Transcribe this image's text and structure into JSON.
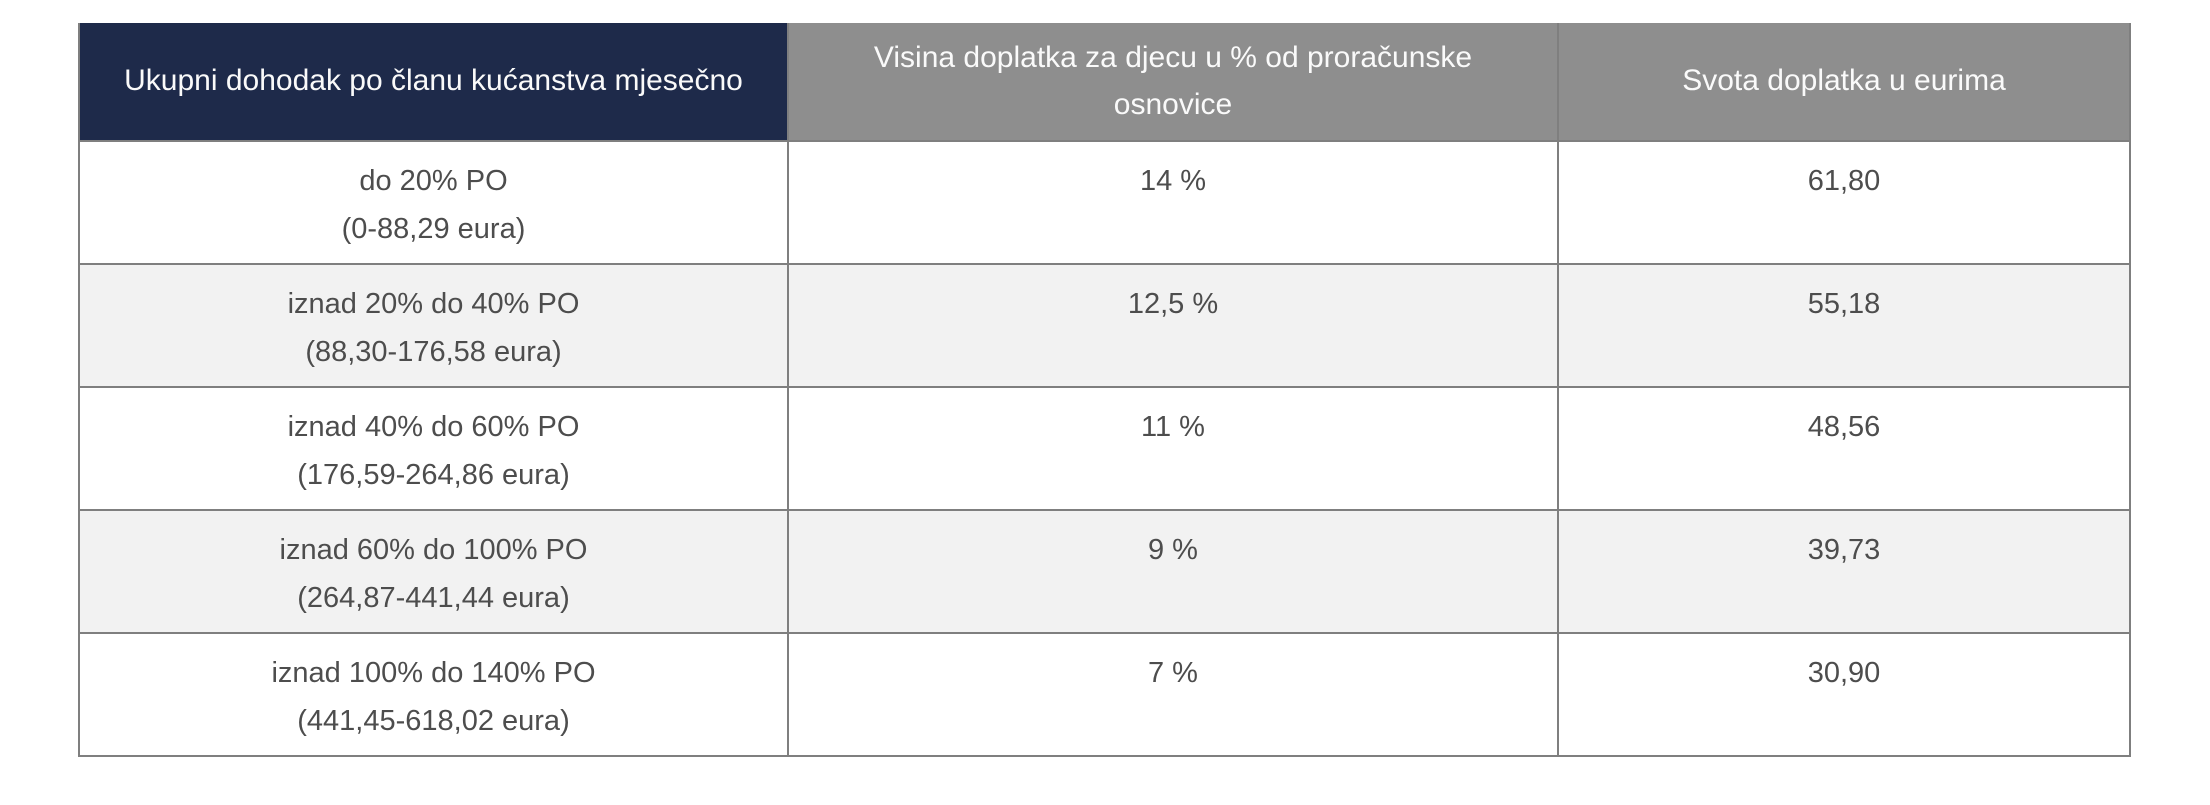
{
  "colors": {
    "header_income_bg": "#1e2a4a",
    "header_other_bg": "#8e8e8e",
    "header_text": "#fafafa",
    "body_text": "#4d4d4d",
    "row_bg": "#ffffff",
    "row_alt_bg": "#f2f2f2",
    "border": "#7f7f7f"
  },
  "table": {
    "columns": [
      "Ukupni dohodak po članu kućanstva mjesečno",
      "Visina doplatka za djecu u % od proračunske osnovice",
      "Svota doplatka u eurima"
    ],
    "rows": [
      {
        "range": "do 20% PO",
        "range_detail": "(0-88,29 eura)",
        "percent": "14 %",
        "amount": "61,80"
      },
      {
        "range": "iznad 20% do 40% PO",
        "range_detail": "(88,30-176,58 eura)",
        "percent": "12,5 %",
        "amount": "55,18"
      },
      {
        "range": "iznad 40% do 60% PO",
        "range_detail": "(176,59-264,86 eura)",
        "percent": "11 %",
        "amount": "48,56"
      },
      {
        "range": "iznad 60% do 100% PO",
        "range_detail": "(264,87-441,44 eura)",
        "percent": "9 %",
        "amount": "39,73"
      },
      {
        "range": "iznad 100% do 140% PO",
        "range_detail": "(441,45-618,02 eura)",
        "percent": "7 %",
        "amount": "30,90"
      }
    ]
  }
}
